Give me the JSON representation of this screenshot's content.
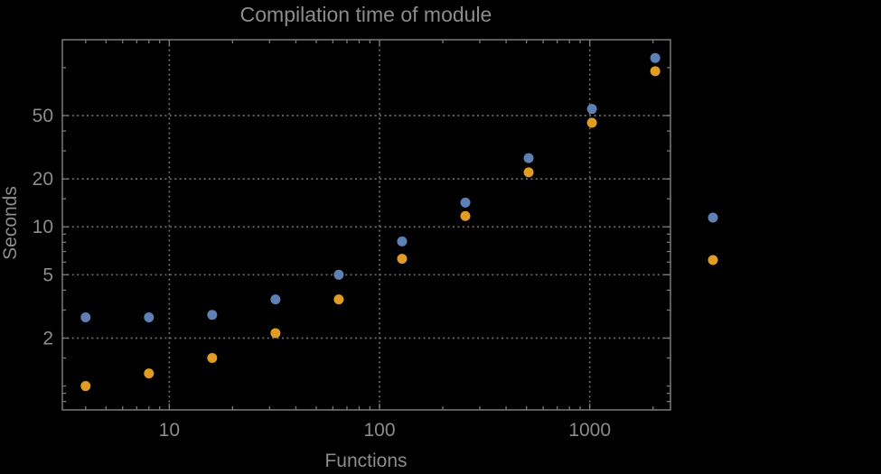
{
  "style": {
    "background": "#000000",
    "text_color": "#8c8c8c",
    "frame_color": "#7a7a7a",
    "grid_color": "#6b6b6b"
  },
  "chart_data": {
    "type": "scatter",
    "title": "Compilation time of module",
    "xlabel": "Functions",
    "ylabel": "Seconds",
    "x_scale": "log",
    "y_scale": "log",
    "x_range": [
      3.1,
      2420
    ],
    "y_range": [
      0.708,
      149.7
    ],
    "grid": "dotted lines at labeled ticks only",
    "x_major_ticks": [
      10,
      100,
      1000
    ],
    "x_major_labels": [
      "10",
      "100",
      "1000"
    ],
    "x_minor_ticks": [
      4,
      5,
      6,
      7,
      8,
      9,
      20,
      30,
      40,
      50,
      60,
      70,
      80,
      90,
      200,
      300,
      400,
      500,
      600,
      700,
      800,
      900,
      2000
    ],
    "y_major_ticks": [
      2,
      5,
      10,
      20,
      50
    ],
    "y_major_labels": [
      "2",
      "5",
      "10",
      "20",
      "50"
    ],
    "y_minor_ticks": [
      0.8,
      0.9,
      1,
      1.5,
      3,
      4,
      6,
      7,
      8,
      9,
      15,
      30,
      40,
      100
    ],
    "x": [
      4,
      8,
      16,
      32,
      64,
      128,
      256,
      512,
      1024,
      2048
    ],
    "series": [
      {
        "color_name": "blue",
        "color": "#5E81B5",
        "values": [
          2.7,
          2.7,
          2.8,
          3.5,
          5.0,
          8.1,
          14.2,
          27,
          55,
          115
        ]
      },
      {
        "color_name": "orange",
        "color": "#E19C24",
        "values": [
          1.0,
          1.2,
          1.5,
          2.15,
          3.5,
          6.3,
          11.7,
          22,
          45,
          95
        ]
      }
    ],
    "legend": {
      "position": "right-center",
      "labels_visible": false,
      "markers": [
        "blue",
        "orange"
      ]
    }
  }
}
